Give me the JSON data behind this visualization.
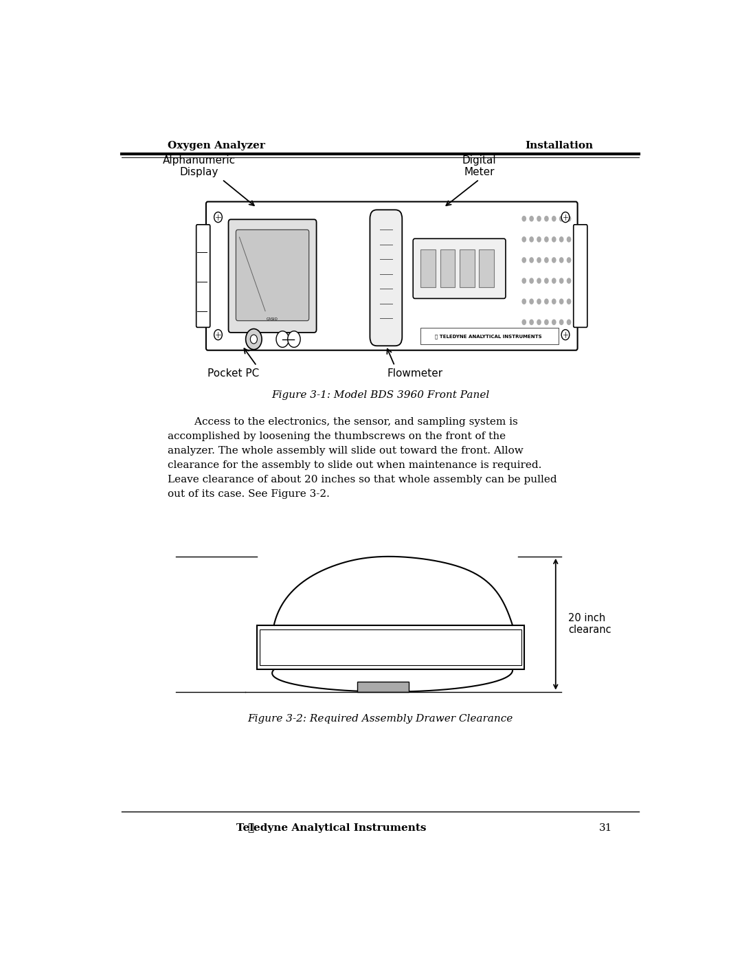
{
  "page_width": 10.8,
  "page_height": 13.97,
  "bg_color": "#ffffff",
  "header_left": "Oxygen Analyzer",
  "header_right": "Installation",
  "footer_text": "Teledyne Analytical Instruments",
  "footer_page": "31",
  "fig1_caption": "Figure 3-1: Model BDS 3960 Front Panel",
  "fig2_caption": "Figure 3-2: Required Assembly Drawer Clearance",
  "label_alphanumeric": "Alphanumeric\nDisplay",
  "label_digital": "Digital\nMeter",
  "label_pocket": "Pocket PC",
  "label_flowmeter": "Flowmeter",
  "label_20inch": "20 inch\nclearanc",
  "body_text": "        Access to the electronics, the sensor, and sampling system is\naccomplished by loosening the thumbscrews on the front of the\nanalyzer. The whole assembly will slide out toward the front. Allow\nclearance for the assembly to slide out when maintenance is required.\nLeave clearance of about 20 inches so that whole assembly can be pulled\nout of its case. See Figure 3-2.",
  "text_color": "#000000"
}
